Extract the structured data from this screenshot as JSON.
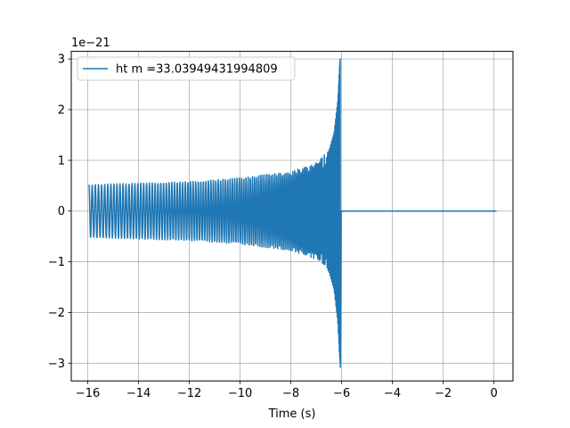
{
  "chart_data": {
    "type": "line",
    "title": "",
    "xlabel": "Time (s)",
    "ylabel": "",
    "y_offset_label": "1e−21",
    "xlim": [
      -16.65,
      0.75
    ],
    "ylim": [
      -3.35,
      3.15
    ],
    "x_ticks": [
      -16,
      -14,
      -12,
      -10,
      -8,
      -6,
      -4,
      -2,
      0
    ],
    "x_tick_labels": [
      "−16",
      "−14",
      "−12",
      "−10",
      "−8",
      "−6",
      "−4",
      "−2",
      "0"
    ],
    "y_ticks": [
      -3,
      -2,
      -1,
      0,
      1,
      2,
      3
    ],
    "y_tick_labels": [
      "−3",
      "−2",
      "−1",
      "0",
      "1",
      "2",
      "3"
    ],
    "grid": true,
    "legend_position": "top-left",
    "series": [
      {
        "name": "ht m =33.03949431994809",
        "color": "#1f77b4",
        "chirp": {
          "t_start": -15.95,
          "t_merger": -6.05,
          "t_end": 0.1,
          "start_amplitude": 0.52,
          "peak_max": 2.88,
          "peak_min": -3.08,
          "post_merger_value": 0
        },
        "envelope": {
          "t": [
            -15.95,
            -14,
            -12,
            -10,
            -8,
            -7,
            -6.5,
            -6.3,
            -6.15,
            -6.08,
            -6.05
          ],
          "amplitude": [
            0.52,
            0.55,
            0.58,
            0.65,
            0.78,
            0.95,
            1.2,
            1.55,
            2.2,
            2.88,
            3.08
          ]
        }
      }
    ]
  }
}
